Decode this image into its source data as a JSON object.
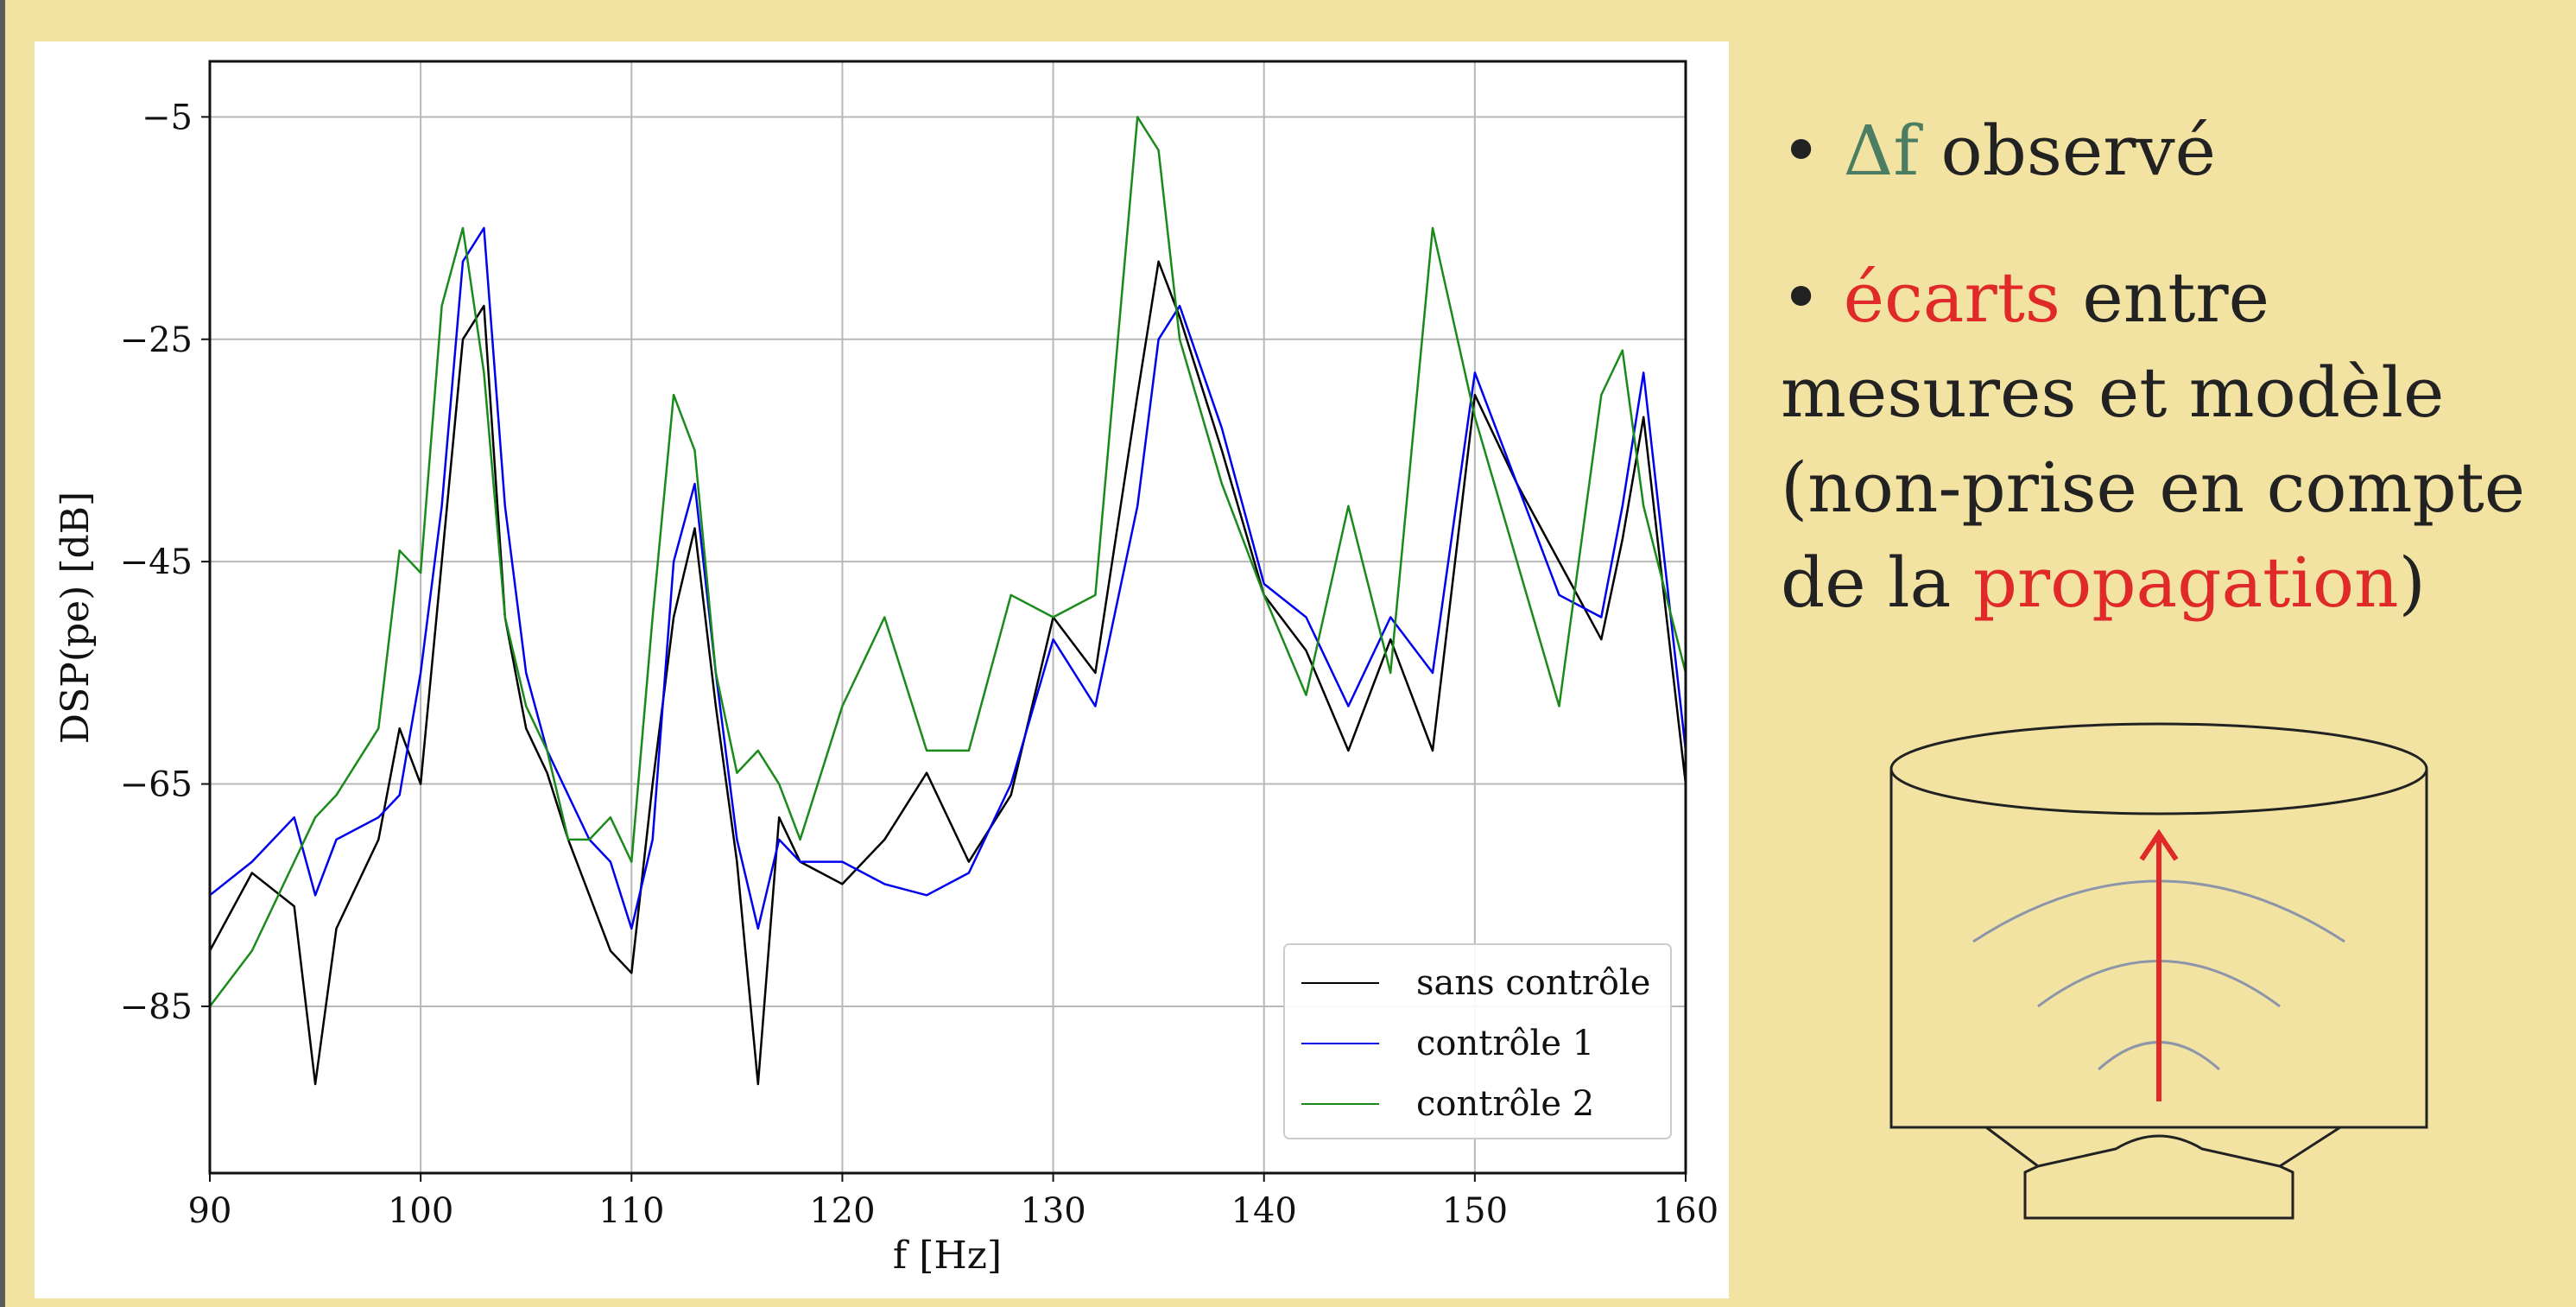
{
  "chart_data": {
    "type": "line",
    "xlabel": "f [Hz]",
    "ylabel": "DSP(pe) [dB]",
    "xlim": [
      90,
      160
    ],
    "ylim": [
      -100,
      0
    ],
    "xticks": [
      90,
      100,
      110,
      120,
      130,
      140,
      150,
      160
    ],
    "yticks": [
      -5,
      -25,
      -45,
      -65,
      -85
    ],
    "grid": true,
    "legend_position": "bottom-right",
    "legend": [
      "sans contrôle",
      "contrôle 1",
      "contrôle 2"
    ],
    "colors": {
      "sans contrôle": "#000000",
      "contrôle 1": "#0000ee",
      "contrôle 2": "#1a8a1a"
    },
    "series": [
      {
        "name": "sans contrôle",
        "color": "#000000",
        "x": [
          90,
          92,
          94,
          95,
          96,
          98,
          99,
          100,
          101,
          102,
          103,
          104,
          105,
          106,
          107,
          108,
          109,
          110,
          111,
          112,
          113,
          114,
          115,
          116,
          117,
          118,
          120,
          122,
          124,
          126,
          128,
          130,
          132,
          134,
          135,
          136,
          138,
          140,
          142,
          144,
          146,
          148,
          150,
          152,
          154,
          156,
          157,
          158,
          160
        ],
        "y": [
          -80,
          -73,
          -76,
          -92,
          -78,
          -70,
          -60,
          -65,
          -45,
          -25,
          -22,
          -50,
          -60,
          -64,
          -70,
          -75,
          -80,
          -82,
          -65,
          -50,
          -42,
          -58,
          -72,
          -92,
          -68,
          -72,
          -74,
          -70,
          -64,
          -72,
          -66,
          -50,
          -55,
          -30,
          -18,
          -23,
          -35,
          -48,
          -53,
          -62,
          -52,
          -62,
          -30,
          -38,
          -45,
          -52,
          -43,
          -32,
          -65
        ]
      },
      {
        "name": "contrôle 1",
        "color": "#0000ee",
        "x": [
          90,
          92,
          94,
          95,
          96,
          98,
          99,
          100,
          101,
          102,
          103,
          104,
          105,
          106,
          107,
          108,
          109,
          110,
          111,
          112,
          113,
          114,
          115,
          116,
          117,
          118,
          120,
          122,
          124,
          126,
          128,
          130,
          132,
          134,
          135,
          136,
          138,
          140,
          142,
          144,
          146,
          148,
          150,
          152,
          154,
          156,
          157,
          158,
          160
        ],
        "y": [
          -75,
          -72,
          -68,
          -75,
          -70,
          -68,
          -66,
          -55,
          -40,
          -18,
          -15,
          -40,
          -55,
          -62,
          -66,
          -70,
          -72,
          -78,
          -70,
          -45,
          -38,
          -55,
          -70,
          -78,
          -70,
          -72,
          -72,
          -74,
          -75,
          -73,
          -65,
          -52,
          -58,
          -40,
          -25,
          -22,
          -33,
          -47,
          -50,
          -58,
          -50,
          -55,
          -28,
          -38,
          -48,
          -50,
          -40,
          -28,
          -62
        ]
      },
      {
        "name": "contrôle 2",
        "color": "#1a8a1a",
        "x": [
          90,
          92,
          94,
          95,
          96,
          98,
          99,
          100,
          101,
          102,
          103,
          104,
          105,
          106,
          107,
          108,
          109,
          110,
          111,
          112,
          113,
          114,
          115,
          116,
          117,
          118,
          120,
          122,
          124,
          126,
          128,
          130,
          132,
          134,
          135,
          136,
          138,
          140,
          142,
          144,
          146,
          148,
          150,
          152,
          154,
          156,
          157,
          158,
          160
        ],
        "y": [
          -85,
          -80,
          -72,
          -68,
          -66,
          -60,
          -44,
          -46,
          -22,
          -15,
          -28,
          -50,
          -58,
          -62,
          -70,
          -70,
          -68,
          -72,
          -50,
          -30,
          -35,
          -55,
          -64,
          -62,
          -65,
          -70,
          -58,
          -50,
          -62,
          -62,
          -48,
          -50,
          -48,
          -5,
          -8,
          -25,
          -38,
          -48,
          -57,
          -40,
          -55,
          -15,
          -32,
          -45,
          -58,
          -30,
          -26,
          -40,
          -55
        ]
      }
    ]
  },
  "notes": {
    "bullet1_prefix": "• ",
    "bullet1_symbol": "Δf",
    "bullet1_text": " observé",
    "bullet2_prefix": "• ",
    "bullet2_red": "écarts",
    "bullet2_text1": " entre mesures et modèle (non-prise en compte de la ",
    "bullet2_red2": "propagation",
    "bullet2_text2": ")"
  }
}
